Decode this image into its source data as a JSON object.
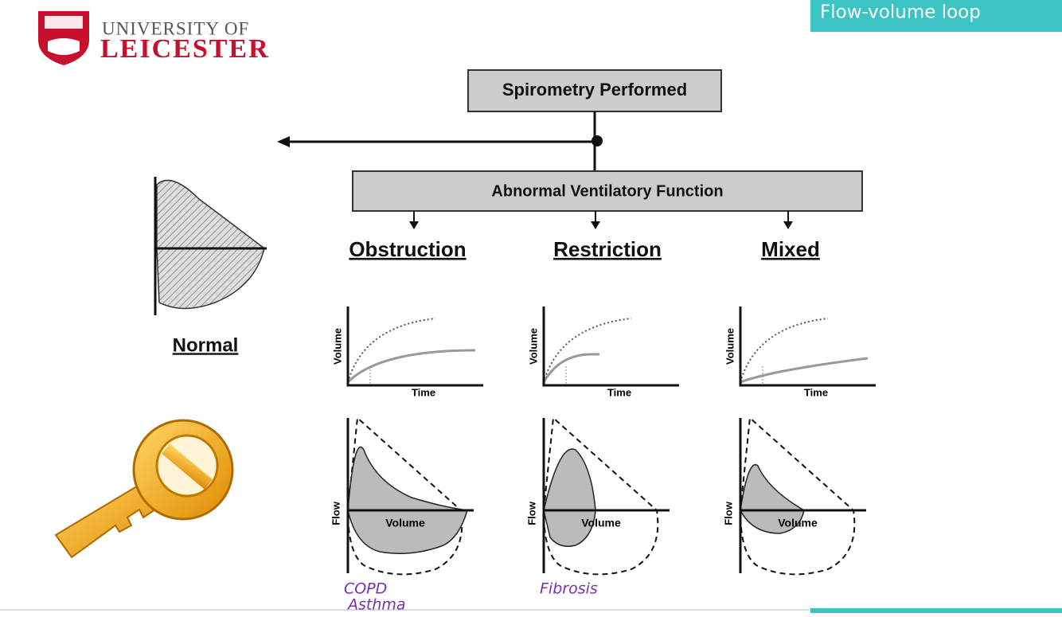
{
  "header": {
    "logo_line1": "UNIVERSITY OF",
    "logo_line2": "LEICESTER",
    "title": "Flow-volume loop"
  },
  "diagram": {
    "root": "Spirometry Performed",
    "branch": "Abnormal Ventilatory Function",
    "normal": "Normal",
    "columns": [
      {
        "label": "Obstruction",
        "time_chart": {
          "y_label": "Volume",
          "x_label": "Time"
        },
        "flow_chart": {
          "y_label": "Flow",
          "x_label": "Volume"
        },
        "notes": [
          "COPD",
          "Asthma"
        ]
      },
      {
        "label": "Restriction",
        "time_chart": {
          "y_label": "Volume",
          "x_label": "Time"
        },
        "flow_chart": {
          "y_label": "Flow",
          "x_label": "Volume"
        },
        "notes": [
          "Fibrosis"
        ]
      },
      {
        "label": "Mixed",
        "time_chart": {
          "y_label": "Volume",
          "x_label": "Time"
        },
        "flow_chart": {
          "y_label": "Flow",
          "x_label": "Volume"
        },
        "notes": []
      }
    ]
  }
}
